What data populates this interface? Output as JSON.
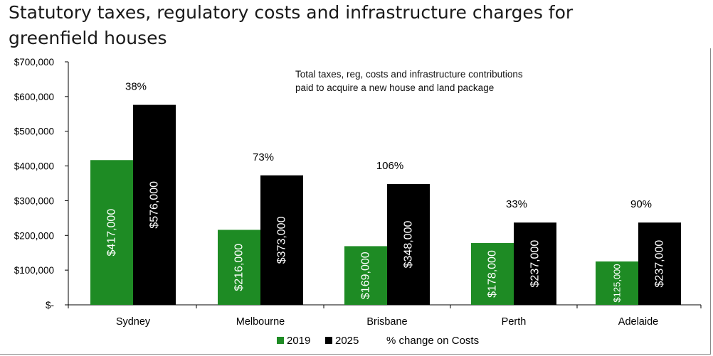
{
  "title": "Statutory taxes, regulatory costs and infrastructure charges for greenfield houses",
  "annotation": "Total taxes, reg, costs and infrastructure contributions paid to acquire a new house and land package",
  "colors": {
    "2019": "#1e8b24",
    "2025": "#000000"
  },
  "chart_data": {
    "type": "bar",
    "categories": [
      "Sydney",
      "Melbourne",
      "Brisbane",
      "Perth",
      "Adelaide"
    ],
    "series": [
      {
        "name": "2019",
        "values": [
          417000,
          216000,
          169000,
          178000,
          125000
        ],
        "labels": [
          "$417,000",
          "$216,000",
          "$169,000",
          "$178,000",
          "$125,000"
        ]
      },
      {
        "name": "2025",
        "values": [
          576000,
          373000,
          348000,
          237000,
          237000
        ],
        "labels": [
          "$576,000",
          "$373,000",
          "$348,000",
          "$237,000",
          "$237,000"
        ]
      }
    ],
    "pct_change": [
      "38%",
      "73%",
      "106%",
      "33%",
      "90%"
    ],
    "legend": [
      "2019",
      "2025",
      "% change on Costs"
    ],
    "legend_position": "bottom",
    "yticks": [
      "$-",
      "$100,000",
      "$200,000",
      "$300,000",
      "$400,000",
      "$500,000",
      "$600,000",
      "$700,000"
    ],
    "ylim": [
      0,
      700000
    ],
    "grid": false
  }
}
